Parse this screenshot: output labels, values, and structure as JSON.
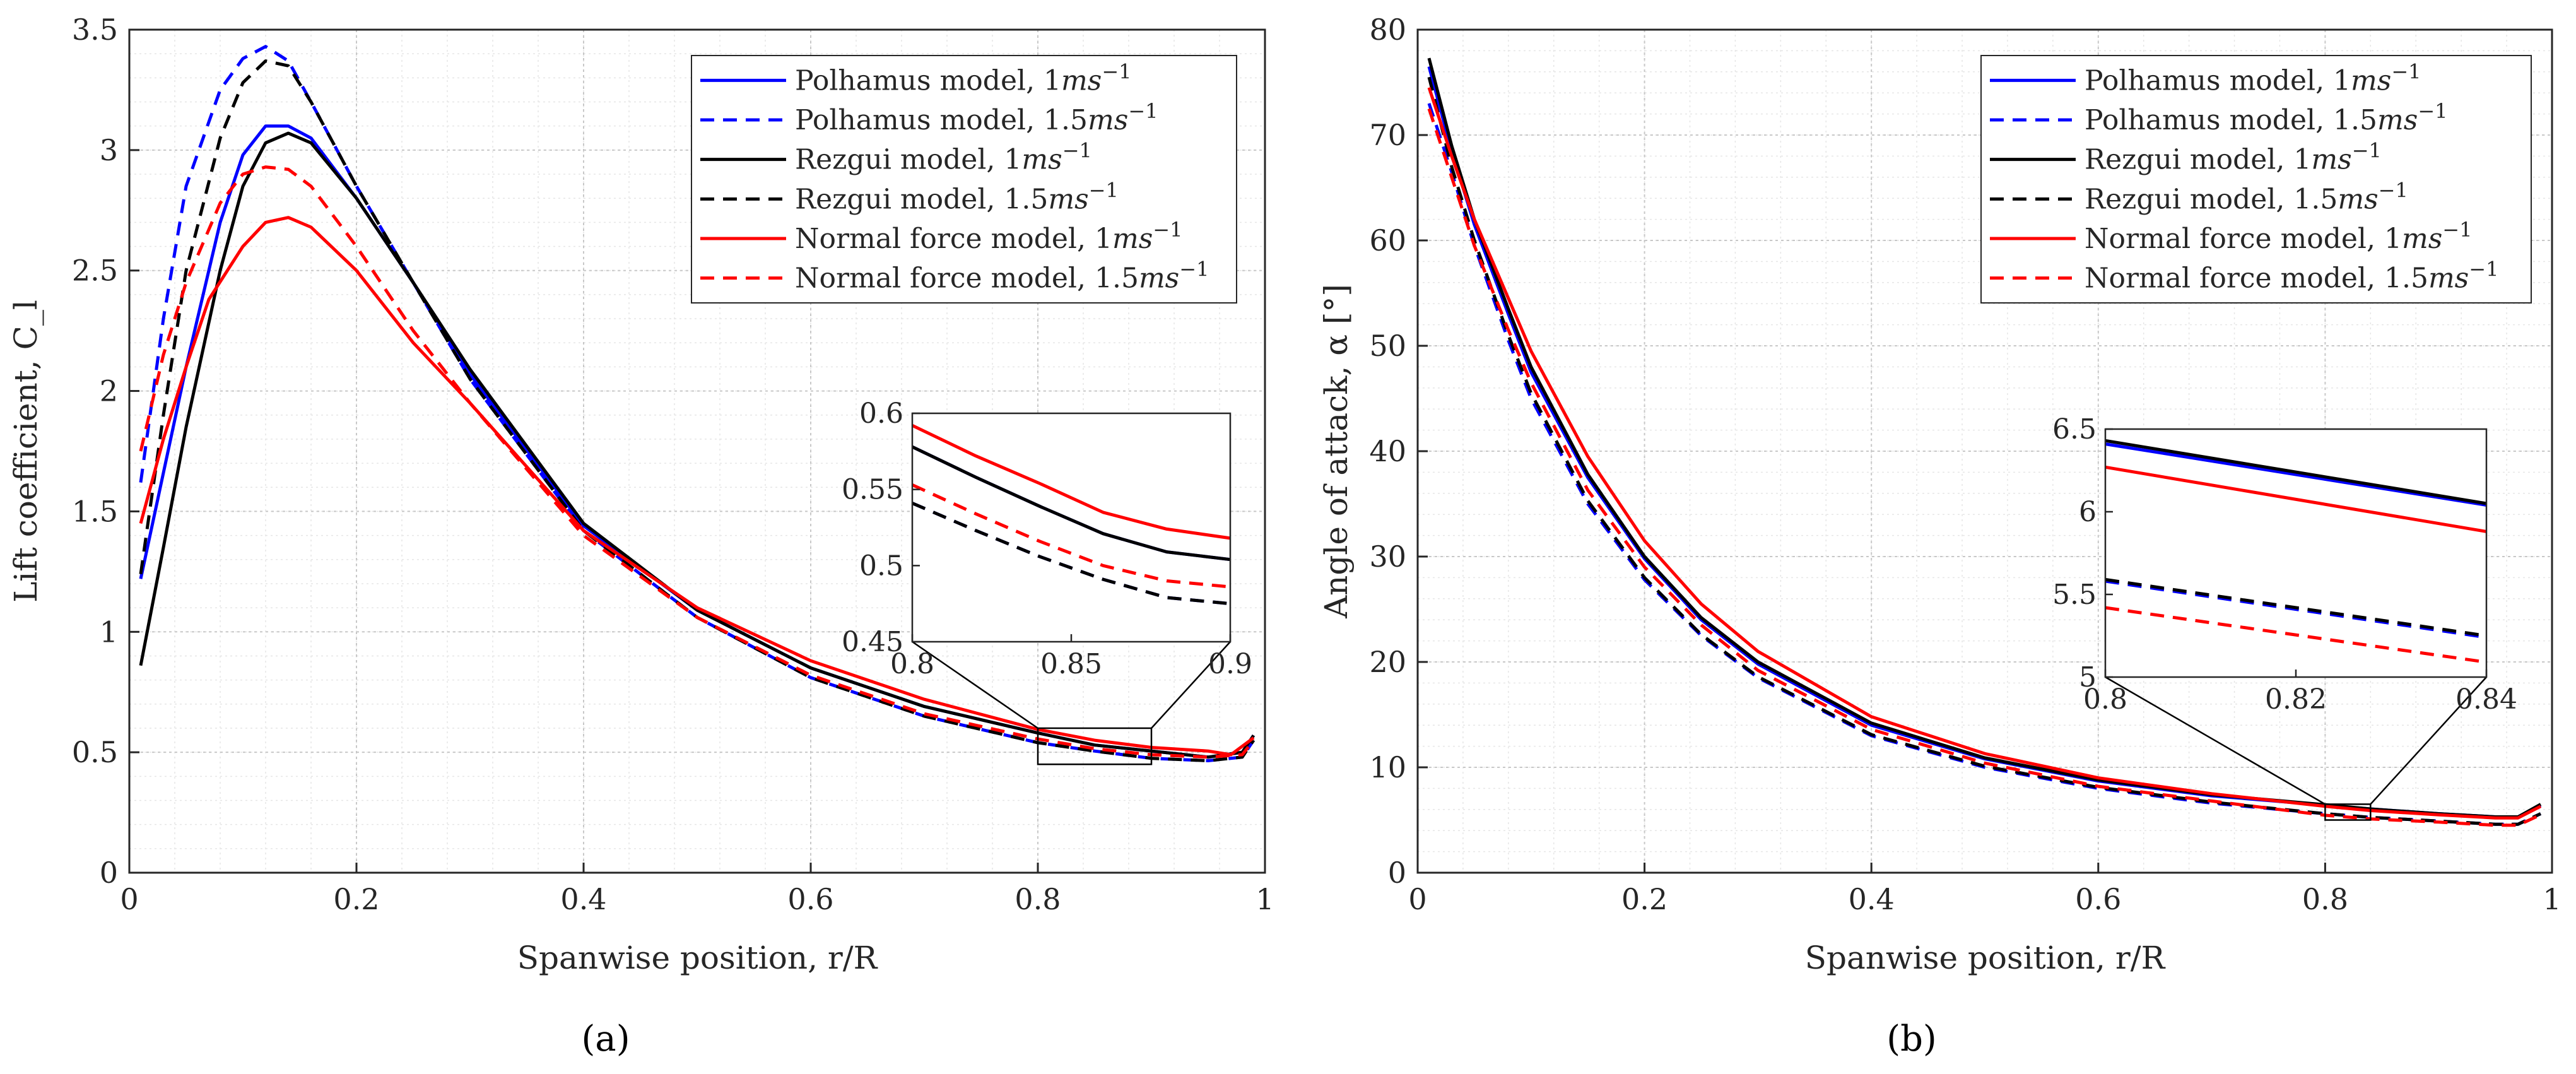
{
  "colors": {
    "blue": "#0000ff",
    "black": "#000000",
    "red": "#ff0000"
  },
  "chart_data": [
    {
      "type": "line",
      "panel_label": "(a)",
      "xlabel": "Spanwise position, r/R",
      "ylabel": "Lift coefficient, C_l",
      "xlim": [
        0,
        1
      ],
      "ylim": [
        0,
        3.5
      ],
      "xticks": [
        0,
        0.2,
        0.4,
        0.6,
        0.8,
        1
      ],
      "xtick_labels": [
        "0",
        "0.2",
        "0.4",
        "0.6",
        "0.8",
        "1"
      ],
      "yticks": [
        0,
        0.5,
        1,
        1.5,
        2,
        2.5,
        3,
        3.5
      ],
      "ytick_labels": [
        "0",
        "0.5",
        "1",
        "1.5",
        "2",
        "2.5",
        "3",
        "3.5"
      ],
      "grid": true,
      "minor_grid": true,
      "legend_position": "top-right",
      "series": [
        {
          "name": "Polhamus model, 1ms^-1",
          "label_main": "Polhamus model, 1",
          "label_unit": "ms",
          "label_exp": "−1",
          "color": "blue",
          "dash": "solid",
          "x": [
            0.01,
            0.05,
            0.08,
            0.1,
            0.12,
            0.14,
            0.16,
            0.2,
            0.25,
            0.3,
            0.4,
            0.5,
            0.6,
            0.7,
            0.8,
            0.85,
            0.9,
            0.95,
            0.98,
            0.99
          ],
          "y": [
            1.22,
            2.1,
            2.7,
            2.98,
            3.1,
            3.1,
            3.05,
            2.8,
            2.45,
            2.07,
            1.44,
            1.09,
            0.85,
            0.69,
            0.58,
            0.53,
            0.505,
            0.48,
            0.5,
            0.57
          ]
        },
        {
          "name": "Polhamus model, 1.5ms^-1",
          "label_main": "Polhamus model, 1.5",
          "label_unit": "ms",
          "label_exp": "−1",
          "color": "blue",
          "dash": "dash",
          "x": [
            0.01,
            0.03,
            0.05,
            0.08,
            0.1,
            0.12,
            0.14,
            0.16,
            0.2,
            0.25,
            0.3,
            0.4,
            0.5,
            0.6,
            0.7,
            0.8,
            0.85,
            0.9,
            0.95,
            0.98,
            0.99
          ],
          "y": [
            1.62,
            2.3,
            2.85,
            3.25,
            3.38,
            3.43,
            3.37,
            3.2,
            2.85,
            2.45,
            2.05,
            1.42,
            1.06,
            0.81,
            0.65,
            0.54,
            0.505,
            0.475,
            0.465,
            0.48,
            0.55
          ]
        },
        {
          "name": "Rezgui model, 1ms^-1",
          "label_main": "Rezgui model, 1",
          "label_unit": "ms",
          "label_exp": "−1",
          "color": "black",
          "dash": "solid",
          "x": [
            0.01,
            0.03,
            0.05,
            0.08,
            0.1,
            0.12,
            0.14,
            0.16,
            0.2,
            0.25,
            0.3,
            0.4,
            0.5,
            0.6,
            0.7,
            0.8,
            0.85,
            0.9,
            0.95,
            0.98,
            0.99
          ],
          "y": [
            0.86,
            1.35,
            1.85,
            2.5,
            2.85,
            3.03,
            3.07,
            3.03,
            2.8,
            2.45,
            2.09,
            1.45,
            1.09,
            0.85,
            0.69,
            0.58,
            0.53,
            0.505,
            0.48,
            0.5,
            0.57
          ]
        },
        {
          "name": "Rezgui model, 1.5ms^-1",
          "label_main": "Rezgui model, 1.5",
          "label_unit": "ms",
          "label_exp": "−1",
          "color": "black",
          "dash": "dash",
          "x": [
            0.01,
            0.03,
            0.05,
            0.08,
            0.1,
            0.12,
            0.14,
            0.16,
            0.2,
            0.25,
            0.3,
            0.4,
            0.5,
            0.6,
            0.7,
            0.8,
            0.85,
            0.9,
            0.95,
            0.98,
            0.99
          ],
          "y": [
            1.24,
            1.9,
            2.5,
            3.05,
            3.28,
            3.37,
            3.35,
            3.2,
            2.85,
            2.45,
            2.05,
            1.42,
            1.06,
            0.81,
            0.65,
            0.54,
            0.505,
            0.475,
            0.465,
            0.48,
            0.55
          ]
        },
        {
          "name": "Normal force model, 1ms^-1",
          "label_main": "Normal force model, 1",
          "label_unit": "ms",
          "label_exp": "−1",
          "color": "red",
          "dash": "solid",
          "x": [
            0.01,
            0.03,
            0.05,
            0.07,
            0.1,
            0.12,
            0.14,
            0.16,
            0.2,
            0.25,
            0.3,
            0.4,
            0.5,
            0.6,
            0.7,
            0.8,
            0.85,
            0.9,
            0.95,
            0.97,
            0.99
          ],
          "y": [
            1.45,
            1.8,
            2.1,
            2.38,
            2.6,
            2.7,
            2.72,
            2.68,
            2.5,
            2.2,
            1.95,
            1.42,
            1.1,
            0.88,
            0.72,
            0.595,
            0.55,
            0.52,
            0.505,
            0.49,
            0.56
          ]
        },
        {
          "name": "Normal force model, 1.5ms^-1",
          "label_main": "Normal force model, 1.5",
          "label_unit": "ms",
          "label_exp": "−1",
          "color": "red",
          "dash": "dash",
          "x": [
            0.01,
            0.03,
            0.05,
            0.08,
            0.1,
            0.12,
            0.14,
            0.16,
            0.2,
            0.25,
            0.3,
            0.4,
            0.5,
            0.6,
            0.7,
            0.8,
            0.85,
            0.9,
            0.95,
            0.98,
            0.99
          ],
          "y": [
            1.75,
            2.15,
            2.45,
            2.78,
            2.9,
            2.93,
            2.92,
            2.85,
            2.6,
            2.25,
            1.95,
            1.4,
            1.06,
            0.82,
            0.66,
            0.555,
            0.515,
            0.49,
            0.48,
            0.49,
            0.55
          ]
        }
      ],
      "inset": {
        "xlim": [
          0.8,
          0.9
        ],
        "ylim": [
          0.45,
          0.6
        ],
        "xticks": [
          0.8,
          0.85,
          0.9
        ],
        "xtick_labels": [
          "0.8",
          "0.85",
          "0.9"
        ],
        "yticks": [
          0.45,
          0.5,
          0.55,
          0.6
        ],
        "ytick_labels": [
          "0.45",
          "0.5",
          "0.55",
          "0.6"
        ],
        "series": [
          {
            "color": "blue",
            "dash": "solid",
            "x": [
              0.8,
              0.82,
              0.84,
              0.86,
              0.88,
              0.9
            ],
            "y": [
              0.578,
              0.558,
              0.539,
              0.521,
              0.509,
              0.504
            ]
          },
          {
            "color": "black",
            "dash": "solid",
            "x": [
              0.8,
              0.82,
              0.84,
              0.86,
              0.88,
              0.9
            ],
            "y": [
              0.578,
              0.558,
              0.539,
              0.521,
              0.509,
              0.504
            ]
          },
          {
            "color": "blue",
            "dash": "dash",
            "x": [
              0.8,
              0.82,
              0.84,
              0.86,
              0.88,
              0.9
            ],
            "y": [
              0.541,
              0.523,
              0.506,
              0.491,
              0.479,
              0.475
            ]
          },
          {
            "color": "black",
            "dash": "dash",
            "x": [
              0.8,
              0.82,
              0.84,
              0.86,
              0.88,
              0.9
            ],
            "y": [
              0.541,
              0.523,
              0.506,
              0.491,
              0.479,
              0.475
            ]
          },
          {
            "color": "red",
            "dash": "solid",
            "x": [
              0.8,
              0.82,
              0.84,
              0.86,
              0.88,
              0.9
            ],
            "y": [
              0.592,
              0.572,
              0.554,
              0.535,
              0.524,
              0.518
            ]
          },
          {
            "color": "red",
            "dash": "dash",
            "x": [
              0.8,
              0.82,
              0.84,
              0.86,
              0.88,
              0.9
            ],
            "y": [
              0.553,
              0.534,
              0.516,
              0.5,
              0.49,
              0.486
            ]
          }
        ]
      }
    },
    {
      "type": "line",
      "panel_label": "(b)",
      "xlabel": "Spanwise position, r/R",
      "ylabel": "Angle of attack, α [°]",
      "xlim": [
        0,
        1
      ],
      "ylim": [
        0,
        80
      ],
      "xticks": [
        0,
        0.2,
        0.4,
        0.6,
        0.8,
        1
      ],
      "xtick_labels": [
        "0",
        "0.2",
        "0.4",
        "0.6",
        "0.8",
        "1"
      ],
      "yticks": [
        0,
        10,
        20,
        30,
        40,
        50,
        60,
        70,
        80
      ],
      "ytick_labels": [
        "0",
        "10",
        "20",
        "30",
        "40",
        "50",
        "60",
        "70",
        "80"
      ],
      "grid": true,
      "minor_grid": true,
      "legend_position": "top-right",
      "series": [
        {
          "name": "Polhamus model, 1ms^-1",
          "label_main": "Polhamus model, 1",
          "label_unit": "ms",
          "label_exp": "−1",
          "color": "blue",
          "dash": "solid",
          "x": [
            0.01,
            0.03,
            0.05,
            0.08,
            0.1,
            0.15,
            0.2,
            0.25,
            0.3,
            0.4,
            0.5,
            0.6,
            0.7,
            0.8,
            0.84,
            0.9,
            0.95,
            0.97,
            0.99
          ],
          "y": [
            76.5,
            68.5,
            61.5,
            53.0,
            47.5,
            37.5,
            29.8,
            24.0,
            19.8,
            14.0,
            10.8,
            8.7,
            7.3,
            6.4,
            6.05,
            5.6,
            5.3,
            5.3,
            6.4
          ]
        },
        {
          "name": "Polhamus model, 1.5ms^-1",
          "label_main": "Polhamus model, 1.5",
          "label_unit": "ms",
          "label_exp": "−1",
          "color": "blue",
          "dash": "dash",
          "x": [
            0.01,
            0.03,
            0.05,
            0.08,
            0.1,
            0.15,
            0.2,
            0.25,
            0.3,
            0.4,
            0.5,
            0.6,
            0.7,
            0.8,
            0.84,
            0.9,
            0.95,
            0.97,
            0.99
          ],
          "y": [
            73.0,
            66.5,
            59.5,
            50.5,
            45.0,
            35.0,
            27.8,
            22.5,
            18.5,
            13.0,
            10.0,
            8.0,
            6.6,
            5.6,
            5.25,
            4.9,
            4.6,
            4.6,
            5.6
          ]
        },
        {
          "name": "Rezgui model, 1ms^-1",
          "label_main": "Rezgui model, 1",
          "label_unit": "ms",
          "label_exp": "−1",
          "color": "black",
          "dash": "solid",
          "x": [
            0.01,
            0.03,
            0.05,
            0.08,
            0.1,
            0.15,
            0.2,
            0.25,
            0.3,
            0.4,
            0.5,
            0.6,
            0.7,
            0.8,
            0.84,
            0.9,
            0.95,
            0.97,
            0.99
          ],
          "y": [
            77.3,
            69.0,
            62.0,
            53.5,
            48.0,
            37.8,
            30.0,
            24.2,
            20.0,
            14.2,
            10.9,
            8.8,
            7.4,
            6.45,
            6.05,
            5.6,
            5.3,
            5.3,
            6.5
          ]
        },
        {
          "name": "Rezgui model, 1.5ms^-1",
          "label_main": "Rezgui model, 1.5",
          "label_unit": "ms",
          "label_exp": "−1",
          "color": "black",
          "dash": "dash",
          "x": [
            0.01,
            0.03,
            0.05,
            0.08,
            0.1,
            0.15,
            0.2,
            0.25,
            0.3,
            0.4,
            0.5,
            0.6,
            0.7,
            0.8,
            0.84,
            0.9,
            0.95,
            0.97,
            0.99
          ],
          "y": [
            75.5,
            67.0,
            60.0,
            51.0,
            45.5,
            35.3,
            28.0,
            22.6,
            18.6,
            13.1,
            10.1,
            8.1,
            6.7,
            5.6,
            5.25,
            4.9,
            4.6,
            4.6,
            5.6
          ]
        },
        {
          "name": "Normal force model, 1ms^-1",
          "label_main": "Normal force model, 1",
          "label_unit": "ms",
          "label_exp": "−1",
          "color": "red",
          "dash": "solid",
          "x": [
            0.01,
            0.03,
            0.05,
            0.08,
            0.1,
            0.15,
            0.2,
            0.25,
            0.3,
            0.4,
            0.5,
            0.6,
            0.7,
            0.8,
            0.84,
            0.9,
            0.95,
            0.97,
            0.99
          ],
          "y": [
            74.5,
            68.0,
            62.0,
            54.5,
            49.5,
            39.5,
            31.5,
            25.5,
            21.0,
            14.8,
            11.3,
            9.0,
            7.5,
            6.3,
            5.9,
            5.5,
            5.2,
            5.2,
            6.3
          ]
        },
        {
          "name": "Normal force model, 1.5ms^-1",
          "label_main": "Normal force model, 1.5",
          "label_unit": "ms",
          "label_exp": "−1",
          "color": "red",
          "dash": "dash",
          "x": [
            0.01,
            0.03,
            0.05,
            0.08,
            0.1,
            0.15,
            0.2,
            0.25,
            0.3,
            0.4,
            0.5,
            0.6,
            0.7,
            0.8,
            0.84,
            0.9,
            0.95,
            0.97,
            0.99
          ],
          "y": [
            72.5,
            66.0,
            59.5,
            51.5,
            46.5,
            36.3,
            29.0,
            23.5,
            19.2,
            13.6,
            10.4,
            8.2,
            6.8,
            5.45,
            5.1,
            4.8,
            4.5,
            4.5,
            5.5
          ]
        }
      ],
      "inset": {
        "xlim": [
          0.8,
          0.84
        ],
        "ylim": [
          5,
          6.5
        ],
        "xticks": [
          0.8,
          0.82,
          0.84
        ],
        "xtick_labels": [
          "0.8",
          "0.82",
          "0.84"
        ],
        "yticks": [
          5,
          5.5,
          6,
          6.5
        ],
        "ytick_labels": [
          "5",
          "5.5",
          "6",
          "6.5"
        ],
        "series": [
          {
            "color": "blue",
            "dash": "solid",
            "x": [
              0.8,
              0.84
            ],
            "y": [
              6.41,
              6.04
            ]
          },
          {
            "color": "black",
            "dash": "solid",
            "x": [
              0.8,
              0.84
            ],
            "y": [
              6.43,
              6.05
            ]
          },
          {
            "color": "blue",
            "dash": "dash",
            "x": [
              0.8,
              0.84
            ],
            "y": [
              5.58,
              5.24
            ]
          },
          {
            "color": "black",
            "dash": "dash",
            "x": [
              0.8,
              0.84
            ],
            "y": [
              5.59,
              5.25
            ]
          },
          {
            "color": "red",
            "dash": "solid",
            "x": [
              0.8,
              0.84
            ],
            "y": [
              6.27,
              5.88
            ]
          },
          {
            "color": "red",
            "dash": "dash",
            "x": [
              0.8,
              0.84
            ],
            "y": [
              5.42,
              5.09
            ]
          }
        ]
      }
    }
  ]
}
